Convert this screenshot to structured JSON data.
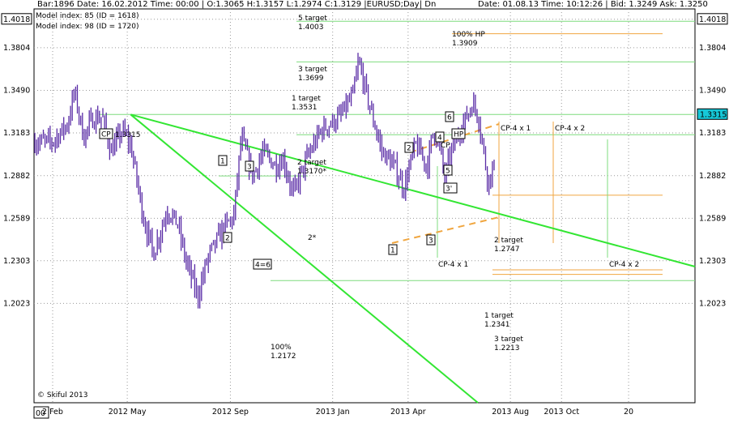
{
  "header": {
    "left": "Bar:1896  Date: 16.02.2012  Time: 00:00  | O:1.3065  H:1.3157  L:1.2974  C:1.3129  |EURUSD;Day|  Dn",
    "right": "Date: 01.08.13  Time: 10:12:26  | Bid: 1.3249  Ask: 1.3250"
  },
  "models": [
    "Model index: 85  (ID = 1618)",
    "Model index: 98  (ID = 1720)"
  ],
  "copyright": "© Skiful 2013",
  "corner_label": "00",
  "chart_data": {
    "type": "ohlc",
    "symbol": "EURUSD",
    "timeframe": "Day",
    "price_ticks": [
      "1.4018",
      "1.3804",
      "1.3490",
      "1.3183",
      "1.2882",
      "1.2589",
      "1.2303",
      "1.2023"
    ],
    "time_ticks": [
      "2 Feb",
      "2012 May",
      "2012 Sep",
      "2013 Jan",
      "2013 Apr",
      "2013 Aug",
      "2013 Oct",
      "20"
    ],
    "current_price": "1.3315",
    "price_path": [
      [
        "2012-02-02",
        1.312
      ],
      [
        "2012-02-20",
        1.325
      ],
      [
        "2012-02-28",
        1.348
      ],
      [
        "2012-03-10",
        1.315
      ],
      [
        "2012-03-20",
        1.328
      ],
      [
        "2012-04-01",
        1.33
      ],
      [
        "2012-04-12",
        1.305
      ],
      [
        "2012-04-25",
        1.32
      ],
      [
        "2012-05-05",
        1.31
      ],
      [
        "2012-05-20",
        1.26
      ],
      [
        "2012-06-01",
        1.235
      ],
      [
        "2012-06-18",
        1.265
      ],
      [
        "2012-06-30",
        1.255
      ],
      [
        "2012-07-10",
        1.23
      ],
      [
        "2012-07-24",
        1.207
      ],
      [
        "2012-08-05",
        1.232
      ],
      [
        "2012-08-22",
        1.25
      ],
      [
        "2012-09-05",
        1.26
      ],
      [
        "2012-09-14",
        1.315
      ],
      [
        "2012-09-28",
        1.288
      ],
      [
        "2012-10-10",
        1.305
      ],
      [
        "2012-10-25",
        1.295
      ],
      [
        "2012-11-03",
        1.3
      ],
      [
        "2012-11-15",
        1.275
      ],
      [
        "2012-12-01",
        1.3
      ],
      [
        "2012-12-18",
        1.32
      ],
      [
        "2013-01-10",
        1.33
      ],
      [
        "2013-01-25",
        1.345
      ],
      [
        "2013-02-01",
        1.37
      ],
      [
        "2013-02-15",
        1.335
      ],
      [
        "2013-03-01",
        1.305
      ],
      [
        "2013-03-15",
        1.295
      ],
      [
        "2013-03-27",
        1.28
      ],
      [
        "2013-04-10",
        1.31
      ],
      [
        "2013-04-24",
        1.295
      ],
      [
        "2013-05-01",
        1.32
      ],
      [
        "2013-05-08",
        1.31
      ],
      [
        "2013-05-15",
        1.285
      ],
      [
        "2013-05-20",
        1.3
      ],
      [
        "2013-06-01",
        1.32
      ],
      [
        "2013-06-10",
        1.33
      ],
      [
        "2013-06-17",
        1.34
      ],
      [
        "2013-06-24",
        1.33
      ],
      [
        "2013-07-05",
        1.285
      ],
      [
        "2013-07-18",
        1.3
      ],
      [
        "2013-08-01",
        1.33
      ]
    ],
    "points": [
      {
        "label": "CP",
        "value": "1.3315"
      },
      {
        "label": "1"
      },
      {
        "label": "2"
      },
      {
        "label": "3"
      },
      {
        "label": "4=6"
      },
      {
        "label": "2*"
      },
      {
        "label": "1"
      },
      {
        "label": "2"
      },
      {
        "label": "3"
      },
      {
        "label": "3'"
      },
      {
        "label": "4"
      },
      {
        "label": "5"
      },
      {
        "label": "6"
      },
      {
        "label": "HP"
      },
      {
        "label": "CP"
      }
    ],
    "targets": [
      {
        "label": "5 target",
        "value": "1.4003"
      },
      {
        "label": "100% HP",
        "value": "1.3909"
      },
      {
        "label": "3 target",
        "value": "1.3699"
      },
      {
        "label": "1 target",
        "value": "1.3531"
      },
      {
        "label": "2 target",
        "value": "1.3170*"
      },
      {
        "label": "2 target",
        "value": "1.2747"
      },
      {
        "label": "1 target",
        "value": "1.2341"
      },
      {
        "label": "3 target",
        "value": "1.2213"
      },
      {
        "label": "100%",
        "value": "1.2172"
      }
    ],
    "time_labels": [
      "CP-4 x 1",
      "CP-4 x 2",
      "CP-4 x 1",
      "CP-4 x 2"
    ],
    "colors": {
      "bars": "#5a2ca6",
      "trend": "#33e633",
      "target_line": "#7fdc7f",
      "projection": "#f0a640",
      "grid": "#9a9a9a"
    }
  }
}
